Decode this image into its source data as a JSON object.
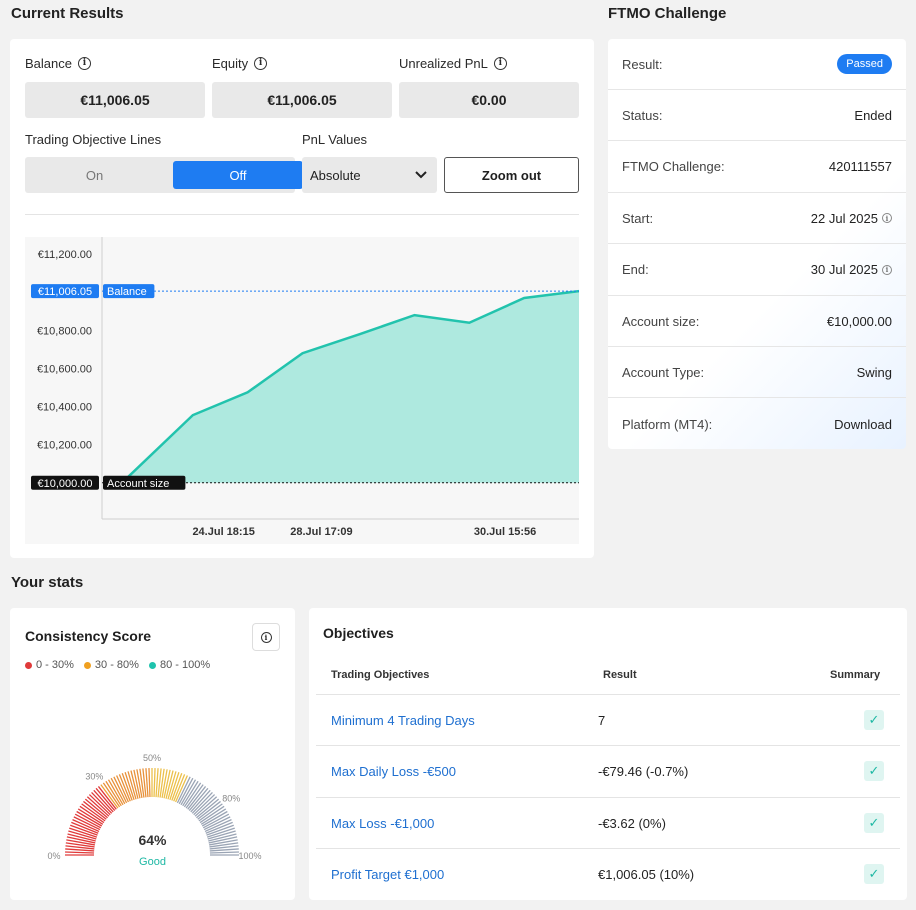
{
  "current_results": {
    "title": "Current Results",
    "balance_label": "Balance",
    "balance_value": "€11,006.05",
    "equity_label": "Equity",
    "equity_value": "€11,006.05",
    "unrealized_label": "Unrealized PnL",
    "unrealized_value": "€0.00",
    "objective_lines_label": "Trading Objective Lines",
    "toggle_on": "On",
    "toggle_off": "Off",
    "pnl_values_label": "PnL Values",
    "pnl_select_value": "Absolute",
    "zoom_out_label": "Zoom out"
  },
  "chart_data": {
    "type": "area",
    "y_ticks": [
      "€11,200.00",
      "€11,006.05",
      "€10,800.00",
      "€10,600.00",
      "€10,400.00",
      "€10,200.00",
      "€10,000.00"
    ],
    "x_ticks": [
      "24.Jul 18:15",
      "28.Jul 17:09",
      "30.Jul 15:56"
    ],
    "ylim": [
      9810,
      11290
    ],
    "balance_line": {
      "value": 11006.05,
      "label": "Balance",
      "value_label": "€11,006.05"
    },
    "account_size_line": {
      "value": 10000,
      "label": "Account size",
      "value_label": "€10,000.00"
    },
    "series": [
      {
        "values": [
          10000,
          10355,
          10475,
          10680,
          10780,
          10880,
          10840,
          10970,
          11006.05
        ]
      }
    ],
    "colors": {
      "fill": "#aee9df",
      "line": "#22c3ad",
      "balance": "#1e7cf2"
    }
  },
  "ftmo": {
    "title": "FTMO Challenge",
    "rows": [
      {
        "label": "Result:",
        "value": "Passed"
      },
      {
        "label": "Status:",
        "value": "Ended"
      },
      {
        "label": "FTMO Challenge:",
        "value": "420111557"
      },
      {
        "label": "Start:",
        "value": "22 Jul 2025"
      },
      {
        "label": "End:",
        "value": "30 Jul 2025"
      },
      {
        "label": "Account size:",
        "value": "€10,000.00"
      },
      {
        "label": "Account Type:",
        "value": "Swing"
      },
      {
        "label": "Platform (MT4):",
        "value": "Download"
      }
    ]
  },
  "stats": {
    "title": "Your stats",
    "consistency": {
      "title": "Consistency Score",
      "legend": [
        {
          "label": "0 - 30%",
          "color": "#e03a3a"
        },
        {
          "label": "30 - 80%",
          "color": "#f0a020"
        },
        {
          "label": "80 - 100%",
          "color": "#1ec3ad"
        }
      ],
      "gauge_labels": [
        "0%",
        "30%",
        "50%",
        "80%",
        "100%"
      ],
      "score": "64%",
      "score_value": 0.64,
      "rating": "Good"
    }
  },
  "objectives": {
    "title": "Objectives",
    "headers": [
      "Trading Objectives",
      "Result",
      "Summary"
    ],
    "rows": [
      {
        "name": "Minimum 4 Trading Days",
        "result": "7"
      },
      {
        "name": "Max Daily Loss -€500",
        "result": "-€79.46 (-0.7%)"
      },
      {
        "name": "Max Loss -€1,000",
        "result": "-€3.62 (0%)"
      },
      {
        "name": "Profit Target €1,000",
        "result": "€1,006.05 (10%)"
      }
    ]
  }
}
